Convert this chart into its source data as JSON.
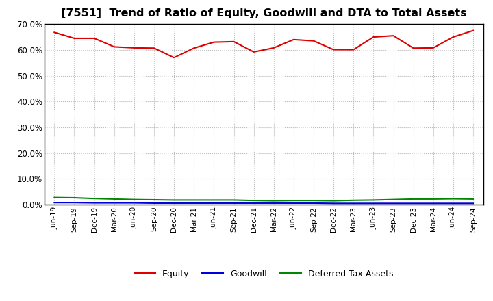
{
  "title": "[7551]  Trend of Ratio of Equity, Goodwill and DTA to Total Assets",
  "x_labels": [
    "Jun-19",
    "Sep-19",
    "Dec-19",
    "Mar-20",
    "Jun-20",
    "Sep-20",
    "Dec-20",
    "Mar-21",
    "Jun-21",
    "Sep-21",
    "Dec-21",
    "Mar-22",
    "Jun-22",
    "Sep-22",
    "Dec-22",
    "Mar-23",
    "Jun-23",
    "Sep-23",
    "Dec-23",
    "Mar-24",
    "Jun-24",
    "Sep-24"
  ],
  "equity": [
    0.668,
    0.645,
    0.645,
    0.612,
    0.608,
    0.607,
    0.57,
    0.607,
    0.63,
    0.632,
    0.592,
    0.608,
    0.64,
    0.635,
    0.601,
    0.601,
    0.65,
    0.655,
    0.607,
    0.608,
    0.65,
    0.675
  ],
  "goodwill": [
    0.008,
    0.008,
    0.007,
    0.007,
    0.007,
    0.006,
    0.006,
    0.006,
    0.006,
    0.006,
    0.006,
    0.006,
    0.006,
    0.006,
    0.005,
    0.005,
    0.005,
    0.005,
    0.005,
    0.005,
    0.005,
    0.005
  ],
  "dta": [
    0.028,
    0.027,
    0.024,
    0.022,
    0.02,
    0.019,
    0.018,
    0.018,
    0.018,
    0.018,
    0.016,
    0.015,
    0.016,
    0.016,
    0.015,
    0.017,
    0.018,
    0.02,
    0.022,
    0.022,
    0.023,
    0.022
  ],
  "equity_color": "#dd0000",
  "goodwill_color": "#0000dd",
  "dta_color": "#008800",
  "ylim": [
    0.0,
    0.7
  ],
  "yticks": [
    0.0,
    0.1,
    0.2,
    0.3,
    0.4,
    0.5,
    0.6,
    0.7
  ],
  "background_color": "#ffffff",
  "plot_bg_color": "#ffffff",
  "grid_color": "#bbbbbb",
  "title_fontsize": 11.5,
  "legend_labels": [
    "Equity",
    "Goodwill",
    "Deferred Tax Assets"
  ]
}
